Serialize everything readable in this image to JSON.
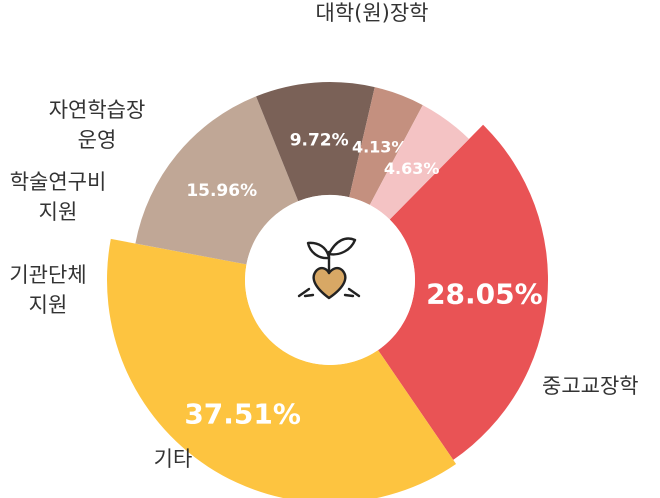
{
  "chart_data": {
    "type": "pie",
    "donut": true,
    "categories": [
      "대학(원)장학",
      "중고교장학",
      "기타",
      "기관단체 지원",
      "학술연구비 지원",
      "자연학습장 운영"
    ],
    "category_lines": [
      [
        "대학(원)장학"
      ],
      [
        "중고교장학"
      ],
      [
        "기타"
      ],
      [
        "기관단체",
        "지원"
      ],
      [
        "학술연구비",
        "지원"
      ],
      [
        "자연학습장",
        "운영"
      ]
    ],
    "values": [
      28.05,
      37.51,
      15.96,
      9.72,
      4.13,
      4.63
    ],
    "value_labels": [
      "28.05%",
      "37.51%",
      "15.96%",
      "9.72%",
      "4.13%",
      "4.63%"
    ],
    "colors": [
      "#e95355",
      "#fdc440",
      "#c0a796",
      "#7a6157",
      "#c4907f",
      "#f4c3c4"
    ],
    "center_icon": "seedling-heart-icon",
    "icon_colors": {
      "stroke": "#222222",
      "heart": "#d8a865"
    }
  }
}
